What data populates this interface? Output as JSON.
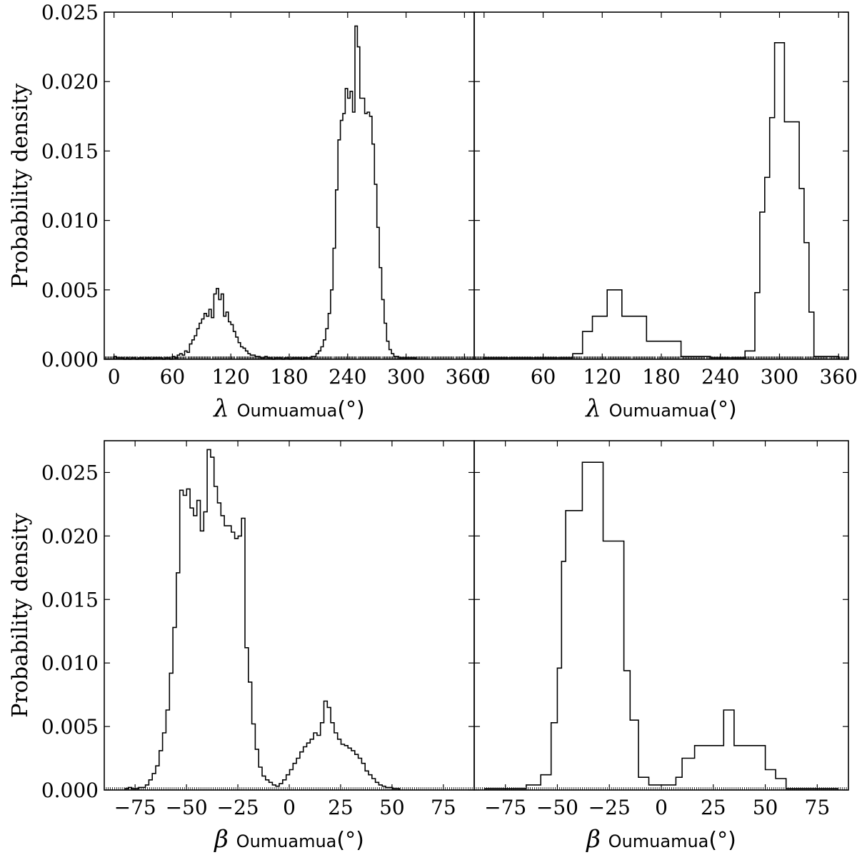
{
  "chart_data": [
    {
      "type": "histogram",
      "panel": "top-left",
      "xlabel": {
        "symbol": "λ",
        "subscript": "Oumuamua",
        "unit": "(°)"
      },
      "ylabel": "Probability density",
      "xlim": [
        -10,
        370
      ],
      "ylim": [
        0,
        0.025
      ],
      "xticks": [
        0,
        60,
        120,
        180,
        240,
        300,
        360
      ],
      "xtick_labels": [
        "0",
        "60",
        "120",
        "180",
        "240",
        "300",
        "360"
      ],
      "yticks": [
        0.0,
        0.005,
        0.01,
        0.015,
        0.02,
        0.025
      ],
      "ytick_labels": [
        "0.000",
        "0.005",
        "0.010",
        "0.015",
        "0.020",
        "0.025"
      ],
      "bin_edges_start": 0,
      "bin_width": 2.5,
      "values": [
        0.0002,
        0.0001,
        0.0001,
        0.0001,
        0.0,
        0.0001,
        0.0,
        0.0001,
        0.0001,
        0.0,
        0.0001,
        0.0001,
        0.0,
        0.0001,
        0.0001,
        0.0,
        0.0001,
        0.0001,
        0.0001,
        0.0001,
        0.0,
        0.0001,
        0.0001,
        0.0,
        0.0002,
        0.0001,
        0.0003,
        0.0004,
        0.0003,
        0.0006,
        0.0005,
        0.0011,
        0.0014,
        0.0017,
        0.0022,
        0.0026,
        0.0029,
        0.0033,
        0.0031,
        0.0036,
        0.003,
        0.0047,
        0.0051,
        0.0043,
        0.0047,
        0.0031,
        0.0034,
        0.0027,
        0.0025,
        0.002,
        0.0016,
        0.0012,
        0.0009,
        0.0008,
        0.0006,
        0.0004,
        0.0003,
        0.0003,
        0.0002,
        0.0002,
        0.0001,
        0.0001,
        0.0002,
        0.0001,
        0.0001,
        0.0,
        0.0001,
        0.0001,
        0.0001,
        0.0,
        0.0001,
        0.0001,
        0.0,
        0.0001,
        0.0001,
        0.0001,
        0.0001,
        0.0,
        0.0001,
        0.0001,
        0.0001,
        0.0002,
        0.0002,
        0.0004,
        0.0006,
        0.0009,
        0.0014,
        0.0022,
        0.0033,
        0.005,
        0.008,
        0.0122,
        0.0158,
        0.0172,
        0.0177,
        0.0195,
        0.0188,
        0.0193,
        0.0178,
        0.024,
        0.0225,
        0.0188,
        0.0188,
        0.0177,
        0.0178,
        0.0175,
        0.0155,
        0.0126,
        0.0095,
        0.0066,
        0.0043,
        0.0026,
        0.0013,
        0.0007,
        0.0004,
        0.0002,
        0.0002,
        0.0001,
        0.0001,
        0.0001,
        0.0001,
        0.0001,
        0.0001,
        0.0001
      ]
    },
    {
      "type": "histogram",
      "panel": "top-right",
      "xlabel": {
        "symbol": "λ",
        "subscript": "Oumuamua",
        "unit": "(°)"
      },
      "xlim": [
        -10,
        370
      ],
      "ylim": [
        0,
        0.025
      ],
      "xticks": [
        0,
        60,
        120,
        180,
        240,
        300,
        360
      ],
      "xtick_labels": [
        "0",
        "60",
        "120",
        "180",
        "240",
        "300",
        "360"
      ],
      "bin_edges": [
        0,
        25,
        50,
        75,
        90,
        100,
        110,
        125,
        140,
        165,
        200,
        230,
        255,
        265,
        275,
        280,
        285,
        290,
        295,
        305,
        320,
        325,
        330,
        335,
        360
      ],
      "values": [
        0.0001,
        0.0001,
        0.0001,
        0.0001,
        0.0004,
        0.002,
        0.0031,
        0.005,
        0.0031,
        0.0013,
        0.0002,
        0.0001,
        0.0001,
        0.0006,
        0.0048,
        0.0106,
        0.0131,
        0.0174,
        0.0228,
        0.0171,
        0.0123,
        0.0084,
        0.0034,
        0.0002
      ]
    },
    {
      "type": "histogram",
      "panel": "bottom-left",
      "xlabel": {
        "symbol": "β",
        "subscript": "Oumuamua",
        "unit": "(°)"
      },
      "ylabel": "Probability density",
      "xlim": [
        -90,
        90
      ],
      "ylim": [
        0,
        0.0275
      ],
      "xticks": [
        -75,
        -50,
        -25,
        0,
        25,
        50,
        75
      ],
      "xtick_labels": [
        "−75",
        "−50",
        "−25",
        "0",
        "25",
        "50",
        "75"
      ],
      "yticks": [
        0.0,
        0.005,
        0.01,
        0.015,
        0.02,
        0.025
      ],
      "ytick_labels": [
        "0.000",
        "0.005",
        "0.010",
        "0.015",
        "0.020",
        "0.025"
      ],
      "bin_edges_start": -80,
      "bin_width": 1.67,
      "values": [
        0.0001,
        0.0002,
        0.0001,
        0.0001,
        0.0002,
        0.0002,
        0.0004,
        0.0008,
        0.0013,
        0.0019,
        0.0031,
        0.0045,
        0.0063,
        0.0092,
        0.0128,
        0.0171,
        0.0236,
        0.0232,
        0.0237,
        0.0222,
        0.0216,
        0.0228,
        0.0204,
        0.0219,
        0.0268,
        0.0262,
        0.0239,
        0.0226,
        0.0216,
        0.0208,
        0.0208,
        0.0203,
        0.0198,
        0.02,
        0.0214,
        0.0112,
        0.0085,
        0.0052,
        0.0032,
        0.0018,
        0.0011,
        0.0008,
        0.0006,
        0.0004,
        0.0003,
        0.0005,
        0.0008,
        0.0012,
        0.0016,
        0.0021,
        0.0025,
        0.003,
        0.0034,
        0.0037,
        0.004,
        0.0045,
        0.0043,
        0.0053,
        0.007,
        0.0065,
        0.0053,
        0.0045,
        0.004,
        0.0036,
        0.0035,
        0.0033,
        0.0031,
        0.0028,
        0.0025,
        0.0021,
        0.0015,
        0.0012,
        0.0009,
        0.0006,
        0.0004,
        0.0003,
        0.0002,
        0.0002,
        0.0001,
        0.0001
      ]
    },
    {
      "type": "histogram",
      "panel": "bottom-right",
      "xlabel": {
        "symbol": "β",
        "subscript": "Oumuamua",
        "unit": "(°)"
      },
      "xlim": [
        -90,
        90
      ],
      "ylim": [
        0,
        0.0275
      ],
      "xticks": [
        -75,
        -50,
        -25,
        0,
        25,
        50,
        75
      ],
      "xtick_labels": [
        "−75",
        "−50",
        "−25",
        "0",
        "25",
        "50",
        "75"
      ],
      "bin_edges": [
        -85,
        -65,
        -58,
        -53,
        -50,
        -48,
        -46,
        -38,
        -28,
        -18,
        -15,
        -11,
        -6,
        0,
        7,
        10,
        16,
        25,
        30,
        35,
        45,
        50,
        55,
        60,
        85
      ],
      "values": [
        0.0001,
        0.0004,
        0.0012,
        0.0053,
        0.0096,
        0.018,
        0.022,
        0.0258,
        0.0196,
        0.0094,
        0.0055,
        0.001,
        0.0004,
        0.0004,
        0.001,
        0.0025,
        0.0035,
        0.0035,
        0.0063,
        0.0035,
        0.0035,
        0.0016,
        0.0009,
        0.0001
      ]
    }
  ]
}
